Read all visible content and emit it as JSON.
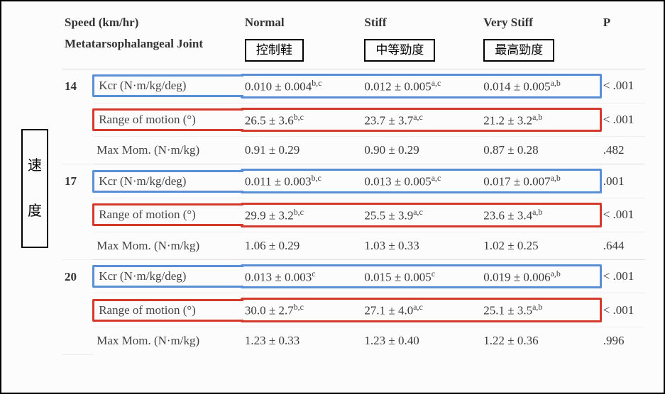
{
  "colors": {
    "border_black": "#000000",
    "hl_blue": "#5a8fd6",
    "hl_red": "#d33a2c",
    "row_divider": "#eeeeee",
    "group_divider": "#dddddd",
    "text": "#3a3a3a",
    "background": "#fcfcfc"
  },
  "typography": {
    "body_font": "Georgia / serif",
    "cjk_font": "Microsoft JhengHei / PingFang",
    "body_size_pt": 13,
    "header_weight": 700
  },
  "side_label": {
    "char1": "速",
    "char2": "度"
  },
  "header": {
    "speed": "Speed (km/hr)",
    "mpj": "Metatarsophalangeal Joint",
    "normal": "Normal",
    "stiff": "Stiff",
    "verystiff": "Very Stiff",
    "p": "P",
    "box_normal": "控制鞋",
    "box_stiff": "中等勁度",
    "box_verystiff": "最高勁度"
  },
  "metrics": {
    "kcr": "Kcr (N·m/kg/deg)",
    "rom": "Range of motion (°)",
    "mom": "Max Mom. (N·m/kg)"
  },
  "rows": [
    {
      "speed": "14",
      "kcr": {
        "n": "0.010 ± 0.004",
        "ns": "b,c",
        "s": "0.012 ± 0.005",
        "ss": "a,c",
        "v": "0.014 ± 0.005",
        "vs": "a,b",
        "p": "< .001"
      },
      "rom": {
        "n": "26.5 ± 3.6",
        "ns": "b,c",
        "s": "23.7 ± 3.7",
        "ss": "a,c",
        "v": "21.2 ± 3.2",
        "vs": "a,b",
        "p": "< .001"
      },
      "mom": {
        "n": "0.91 ± 0.29",
        "s": "0.90 ± 0.29",
        "v": "0.87 ± 0.28",
        "p": ".482"
      }
    },
    {
      "speed": "17",
      "kcr": {
        "n": "0.011 ± 0.003",
        "ns": "b,c",
        "s": "0.013 ± 0.005",
        "ss": "a,c",
        "v": "0.017 ± 0.007",
        "vs": "a,b",
        "p": ".001"
      },
      "rom": {
        "n": "29.9 ± 3.2",
        "ns": "b,c",
        "s": "25.5 ± 3.9",
        "ss": "a,c",
        "v": "23.6 ± 3.4",
        "vs": "a,b",
        "p": "< .001"
      },
      "mom": {
        "n": "1.06 ± 0.29",
        "s": "1.03 ± 0.33",
        "v": "1.02 ± 0.25",
        "p": ".644"
      }
    },
    {
      "speed": "20",
      "kcr": {
        "n": "0.013 ± 0.003",
        "ns": "c",
        "s": "0.015 ± 0.005",
        "ss": "c",
        "v": "0.019 ± 0.006",
        "vs": "a,b",
        "p": "< .001"
      },
      "rom": {
        "n": "30.0 ± 2.7",
        "ns": "b,c",
        "s": "27.1 ± 4.0",
        "ss": "a,c",
        "v": "25.1 ± 3.5",
        "vs": "a,b",
        "p": "< .001"
      },
      "mom": {
        "n": "1.23 ± 0.33",
        "s": "1.23 ± 0.40",
        "v": "1.22 ± 0.36",
        "p": ".996"
      }
    }
  ]
}
